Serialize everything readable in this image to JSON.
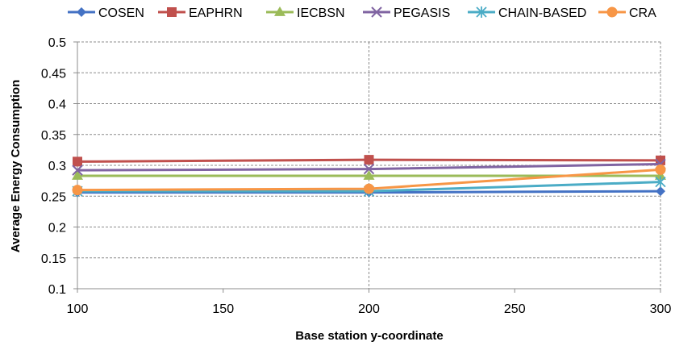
{
  "chart_data": {
    "type": "line",
    "title": "",
    "xlabel": "Base station y-coordinate",
    "ylabel": "Average Energy Consumption",
    "x": [
      100,
      200,
      300
    ],
    "xlim": [
      100,
      300
    ],
    "ylim": [
      0.1,
      0.5
    ],
    "x_ticks": [
      "100",
      "150",
      "200",
      "250",
      "300"
    ],
    "y_ticks": [
      "0.1",
      "0.15",
      "0.2",
      "0.25",
      "0.3",
      "0.35",
      "0.4",
      "0.45",
      "0.5"
    ],
    "grid": true,
    "legend_position": "top",
    "series": [
      {
        "name": "COSEN",
        "values": [
          0.256,
          0.256,
          0.258
        ],
        "color": "#4472C4",
        "marker": "diamond"
      },
      {
        "name": "EAPHRN",
        "values": [
          0.306,
          0.309,
          0.308
        ],
        "color": "#C0504D",
        "marker": "square"
      },
      {
        "name": "IECBSN",
        "values": [
          0.283,
          0.283,
          0.283
        ],
        "color": "#9BBB59",
        "marker": "triangle"
      },
      {
        "name": "PEGASIS",
        "values": [
          0.292,
          0.294,
          0.302
        ],
        "color": "#8064A2",
        "marker": "x"
      },
      {
        "name": "CHAIN-BASED",
        "values": [
          0.258,
          0.258,
          0.273
        ],
        "color": "#4BACC6",
        "marker": "star"
      },
      {
        "name": "CRA",
        "values": [
          0.26,
          0.262,
          0.293
        ],
        "color": "#F79646",
        "marker": "circle"
      }
    ]
  }
}
